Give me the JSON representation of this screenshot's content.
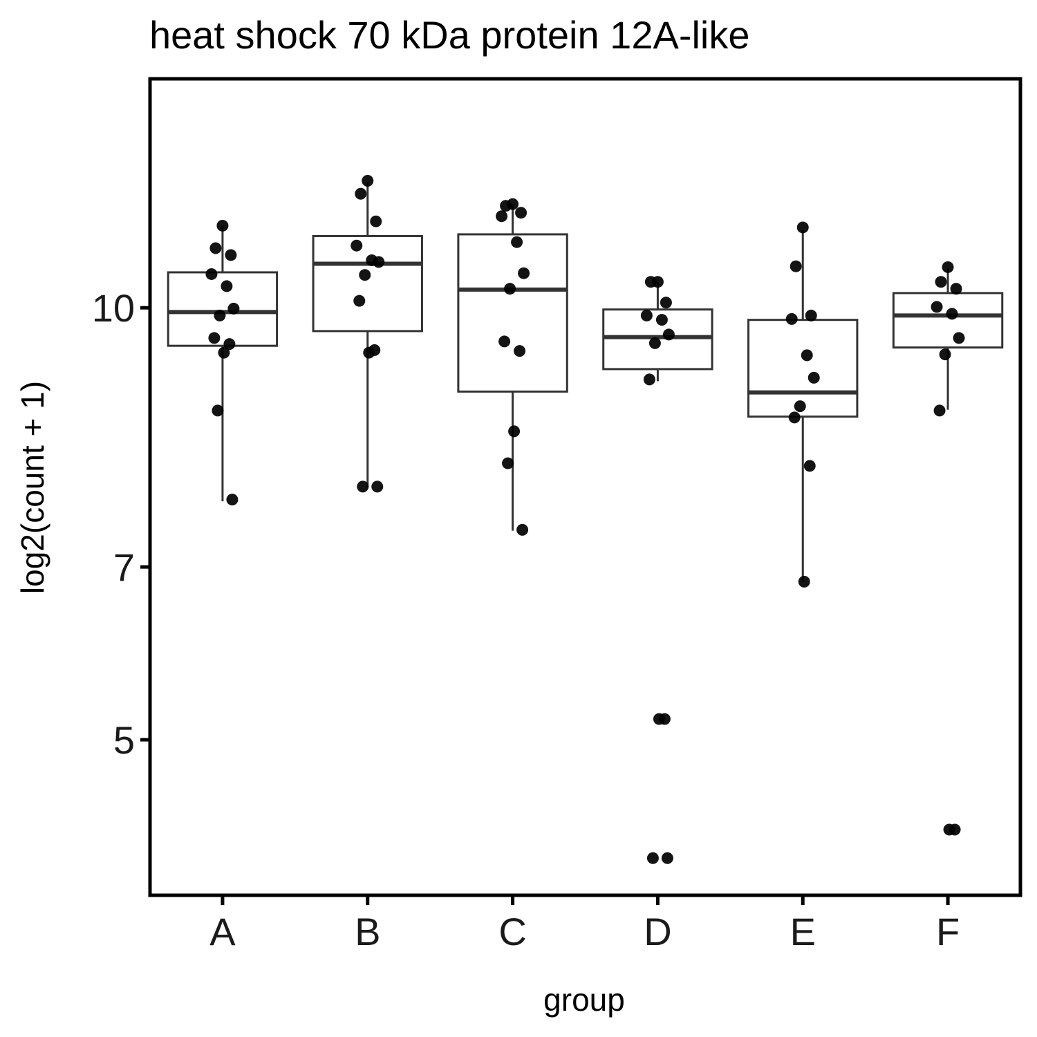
{
  "chart_data": {
    "type": "boxplot",
    "title": "heat shock 70 kDa protein 12A-like",
    "xlabel": "group",
    "ylabel": "log2(count + 1)",
    "categories": [
      "A",
      "B",
      "C",
      "D",
      "E",
      "F"
    ],
    "y_ticks": [
      5,
      7,
      10
    ],
    "ylim": [
      3.2,
      12.65
    ],
    "grid": false,
    "legend": "none",
    "boxes": [
      {
        "group": "A",
        "q1": 9.56,
        "median": 9.95,
        "q3": 10.41,
        "whisker_low": 7.76,
        "whisker_high": 10.95
      },
      {
        "group": "B",
        "q1": 9.73,
        "median": 10.51,
        "q3": 10.83,
        "whisker_low": 7.92,
        "whisker_high": 11.45
      },
      {
        "group": "C",
        "q1": 9.03,
        "median": 10.21,
        "q3": 10.85,
        "whisker_low": 7.42,
        "whisker_high": 11.2
      },
      {
        "group": "D",
        "q1": 9.29,
        "median": 9.66,
        "q3": 9.98,
        "whisker_low": 9.15,
        "whisker_high": 10.3
      },
      {
        "group": "E",
        "q1": 8.74,
        "median": 9.02,
        "q3": 9.86,
        "whisker_low": 6.83,
        "whisker_high": 10.9
      },
      {
        "group": "F",
        "q1": 9.54,
        "median": 9.91,
        "q3": 10.17,
        "whisker_low": 8.82,
        "whisker_high": 10.45
      }
    ],
    "points": [
      {
        "group": "A",
        "values": [
          10.95,
          10.69,
          10.61,
          10.39,
          10.25,
          9.99,
          9.91,
          9.65,
          9.58,
          9.48,
          8.81,
          7.78
        ]
      },
      {
        "group": "B",
        "values": [
          11.47,
          11.32,
          11.0,
          10.72,
          10.55,
          10.53,
          10.38,
          10.08,
          9.51,
          9.48,
          7.93,
          7.93
        ]
      },
      {
        "group": "C",
        "values": [
          11.2,
          11.18,
          11.1,
          11.06,
          10.76,
          10.4,
          10.22,
          9.61,
          9.5,
          8.57,
          8.2,
          7.43
        ]
      },
      {
        "group": "D",
        "values": [
          10.3,
          10.3,
          10.06,
          9.91,
          9.86,
          9.69,
          9.59,
          9.17,
          5.24,
          5.24,
          3.63,
          3.63
        ]
      },
      {
        "group": "E",
        "values": [
          10.93,
          10.48,
          9.91,
          9.87,
          9.45,
          9.19,
          8.86,
          8.73,
          8.17,
          6.83
        ]
      },
      {
        "group": "F",
        "values": [
          10.47,
          10.3,
          10.22,
          10.01,
          9.93,
          9.65,
          9.46,
          8.81,
          3.96,
          3.96
        ]
      }
    ]
  }
}
